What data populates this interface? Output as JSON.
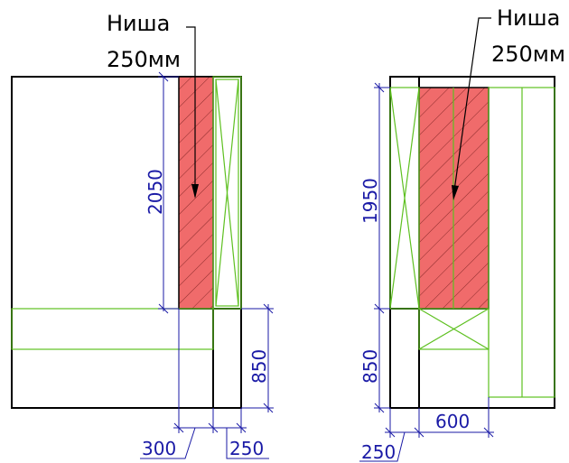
{
  "left": {
    "label_line1": "Ниша",
    "label_line2": "250мм",
    "dim_height_niche": "2050",
    "dim_height_lower": "850",
    "dim_bottom_a": "300",
    "dim_bottom_b": "250"
  },
  "right": {
    "label_line1": "Ниша",
    "label_line2": "250мм",
    "dim_height_niche": "1950",
    "dim_height_lower": "850",
    "dim_width": "600",
    "dim_bottom": "250"
  },
  "colors": {
    "niche_fill": "#f06b6b",
    "cabinet_line": "#5ec020",
    "dimension": "#1a1aa6",
    "wall": "#000000"
  }
}
